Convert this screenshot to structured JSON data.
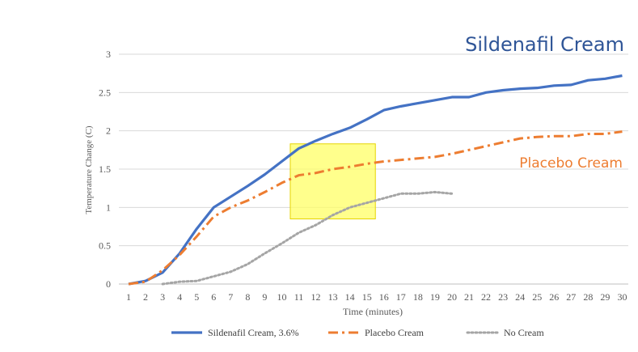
{
  "chart_data": {
    "type": "line",
    "xlabel": "Time (minutes)",
    "ylabel": "Temperature Change (C)",
    "x": [
      1,
      2,
      3,
      4,
      5,
      6,
      7,
      8,
      9,
      10,
      11,
      12,
      13,
      14,
      15,
      16,
      17,
      18,
      19,
      20,
      21,
      22,
      23,
      24,
      25,
      26,
      27,
      28,
      29,
      30
    ],
    "ylim": [
      0,
      3
    ],
    "yticks": [
      "0",
      "0.5",
      "1",
      "1.5",
      "2",
      "2.5",
      "3"
    ],
    "grid": true,
    "legend_position": "bottom",
    "series": [
      {
        "name": "Sildenafil Cream, 3.6%",
        "color": "#4472C4",
        "style": "solid",
        "values": [
          0,
          0.04,
          0.15,
          0.4,
          0.72,
          1.0,
          1.14,
          1.28,
          1.43,
          1.6,
          1.77,
          1.87,
          1.96,
          2.04,
          2.15,
          2.27,
          2.32,
          2.36,
          2.4,
          2.44,
          2.44,
          2.5,
          2.53,
          2.55,
          2.56,
          2.59,
          2.6,
          2.66,
          2.68,
          2.72
        ]
      },
      {
        "name": "Placebo Cream",
        "color": "#ED7D31",
        "style": "dashdot",
        "values": [
          0,
          0.03,
          0.18,
          0.38,
          0.62,
          0.88,
          1.0,
          1.09,
          1.2,
          1.32,
          1.42,
          1.45,
          1.5,
          1.53,
          1.57,
          1.6,
          1.62,
          1.64,
          1.66,
          1.7,
          1.75,
          1.8,
          1.85,
          1.9,
          1.92,
          1.93,
          1.93,
          1.96,
          1.96,
          1.99
        ]
      },
      {
        "name": "No Cream",
        "color": "#A5A5A5",
        "style": "dotted",
        "values": [
          null,
          null,
          0.0,
          0.03,
          0.04,
          0.1,
          0.16,
          0.26,
          0.4,
          0.53,
          0.67,
          0.77,
          0.9,
          1.0,
          1.06,
          1.12,
          1.18,
          1.18,
          1.2,
          1.18,
          null,
          null,
          null,
          null,
          null,
          null,
          null,
          null,
          null,
          null
        ]
      }
    ],
    "annotations": {
      "sildenafil_label": "Sildenafil Cream",
      "placebo_label": "Placebo Cream",
      "highlight_x_range": [
        10.5,
        15.5
      ],
      "highlight_y_range": [
        0.85,
        1.83
      ],
      "highlight_color": "#FFFF66"
    }
  }
}
